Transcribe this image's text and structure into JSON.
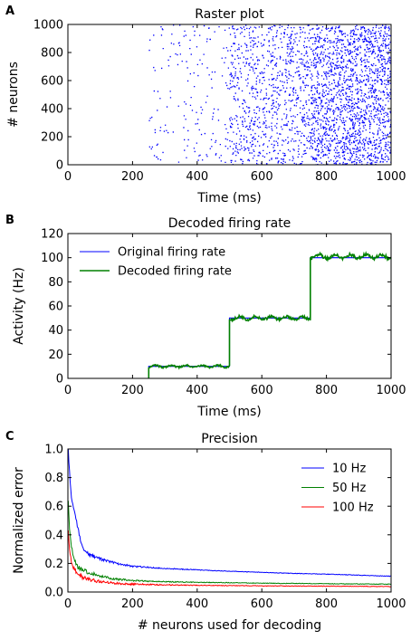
{
  "chart_data": [
    {
      "type": "scatter",
      "panel": "A",
      "title": "Raster plot",
      "xlabel": "Time (ms)",
      "ylabel": "# neurons",
      "xlim": [
        0,
        1000
      ],
      "ylim": [
        0,
        1000
      ],
      "xticks": [
        "0",
        "200",
        "400",
        "600",
        "800",
        "1000"
      ],
      "yticks": [
        "0",
        "200",
        "400",
        "600",
        "800",
        "1000"
      ],
      "grid": false,
      "color": "#0000ff",
      "regions": [
        {
          "t_start": 0,
          "t_end": 250,
          "rate_hz": 0
        },
        {
          "t_start": 250,
          "t_end": 500,
          "rate_hz": 10
        },
        {
          "t_start": 500,
          "t_end": 750,
          "rate_hz": 50
        },
        {
          "t_start": 750,
          "t_end": 1000,
          "rate_hz": 100
        }
      ]
    },
    {
      "type": "line",
      "panel": "B",
      "title": "Decoded firing rate",
      "xlabel": "Time (ms)",
      "ylabel": "Activity (Hz)",
      "xlim": [
        0,
        1000
      ],
      "ylim": [
        0,
        120
      ],
      "xticks": [
        "0",
        "200",
        "400",
        "600",
        "800",
        "1000"
      ],
      "yticks": [
        "0",
        "20",
        "40",
        "60",
        "80",
        "100",
        "120"
      ],
      "grid": false,
      "legend_position": "top-left",
      "series": [
        {
          "name": "Original firing rate",
          "color": "#0000ff",
          "x": [
            0,
            250,
            250,
            500,
            500,
            750,
            750,
            1000
          ],
          "y": [
            0,
            0,
            10,
            10,
            50,
            50,
            100,
            100
          ]
        },
        {
          "name": "Decoded firing rate",
          "color": "#008000",
          "segments": [
            {
              "x_start": 250,
              "x_end": 500,
              "mean": 10,
              "noise": 1.2
            },
            {
              "x_start": 500,
              "x_end": 750,
              "mean": 50,
              "noise": 1.8
            },
            {
              "x_start": 750,
              "x_end": 1000,
              "mean": 101,
              "noise": 2.2
            }
          ]
        }
      ]
    },
    {
      "type": "line",
      "panel": "C",
      "title": "Precision",
      "xlabel": "# neurons used for decoding",
      "ylabel": "Normalized error",
      "xlim": [
        0,
        1000
      ],
      "ylim": [
        0.0,
        1.0
      ],
      "xticks": [
        "0",
        "200",
        "400",
        "600",
        "800",
        "1000"
      ],
      "yticks": [
        "0.0",
        "0.2",
        "0.4",
        "0.6",
        "0.8",
        "1.0"
      ],
      "grid": false,
      "legend_position": "top-right",
      "series": [
        {
          "name": "10 Hz",
          "color": "#0000ff",
          "x": [
            1,
            5,
            10,
            20,
            30,
            40,
            50,
            60,
            80,
            100,
            150,
            200,
            300,
            400,
            500,
            600,
            700,
            800,
            900,
            1000
          ],
          "y": [
            1.0,
            0.83,
            0.68,
            0.56,
            0.45,
            0.36,
            0.3,
            0.27,
            0.25,
            0.23,
            0.2,
            0.18,
            0.165,
            0.155,
            0.145,
            0.138,
            0.13,
            0.125,
            0.118,
            0.11
          ]
        },
        {
          "name": "50 Hz",
          "color": "#008000",
          "x": [
            1,
            5,
            10,
            20,
            30,
            40,
            50,
            60,
            80,
            100,
            150,
            200,
            300,
            400,
            500,
            600,
            700,
            800,
            900,
            1000
          ],
          "y": [
            0.62,
            0.45,
            0.33,
            0.23,
            0.18,
            0.16,
            0.15,
            0.14,
            0.125,
            0.11,
            0.09,
            0.08,
            0.072,
            0.068,
            0.065,
            0.062,
            0.06,
            0.058,
            0.056,
            0.055
          ]
        },
        {
          "name": "100 Hz",
          "color": "#ff0000",
          "x": [
            1,
            5,
            10,
            20,
            30,
            40,
            50,
            60,
            80,
            100,
            150,
            200,
            300,
            400,
            500,
            600,
            700,
            800,
            900,
            1000
          ],
          "y": [
            0.42,
            0.3,
            0.22,
            0.16,
            0.13,
            0.11,
            0.1,
            0.09,
            0.08,
            0.072,
            0.06,
            0.055,
            0.05,
            0.047,
            0.045,
            0.043,
            0.042,
            0.041,
            0.04,
            0.038
          ]
        }
      ]
    }
  ]
}
